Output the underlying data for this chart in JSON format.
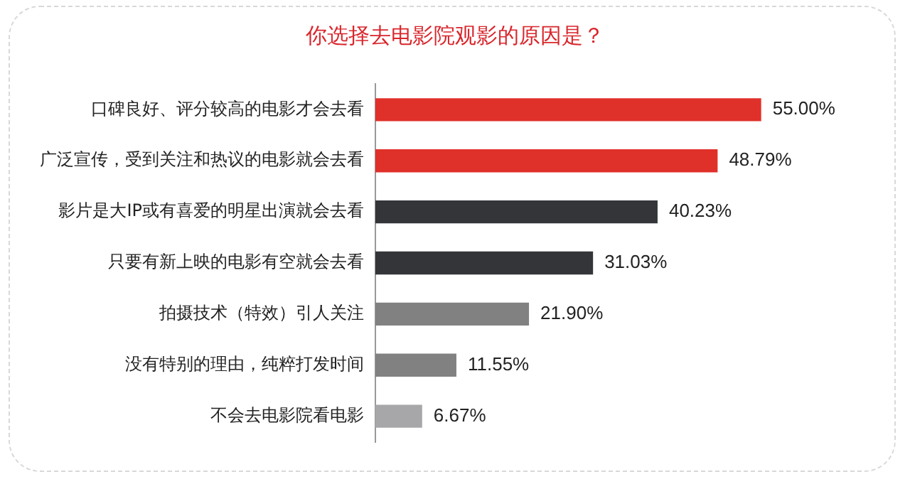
{
  "chart_data": {
    "type": "bar",
    "orientation": "horizontal",
    "title": "你选择去电影院观影的原因是？",
    "categories": [
      "口碑良好、评分较高的电影才会去看",
      "广泛宣传，受到关注和热议的电影就会去看",
      "影片是大IP或有喜爱的明星出演就会去看",
      "只要有新上映的电影有空就会去看",
      "拍摄技术（特效）引人关注",
      "没有特别的理由，纯粹打发时间",
      "不会去电影院看电影"
    ],
    "values": [
      55.0,
      48.79,
      40.23,
      31.03,
      21.9,
      11.55,
      6.67
    ],
    "colors": [
      "#e0302a",
      "#e0302a",
      "#333538",
      "#333538",
      "#818181",
      "#818181",
      "#a7a7aa"
    ],
    "value_labels": [
      "55.00%",
      "48.79%",
      "40.23%",
      "31.03%",
      "21.90%",
      "11.55%",
      "6.67%"
    ],
    "tick_labels": "y"
  }
}
